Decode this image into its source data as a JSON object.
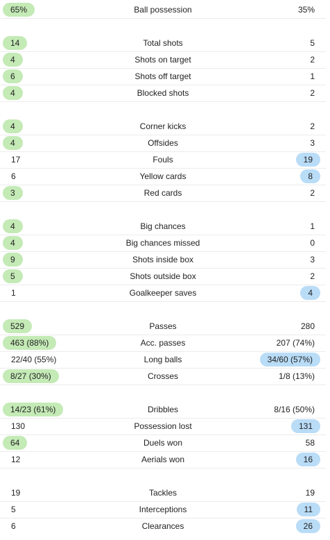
{
  "groups": [
    {
      "rows": [
        {
          "label": "Ball possession",
          "home": "65%",
          "away": "35%",
          "winner": "home"
        }
      ]
    },
    {
      "rows": [
        {
          "label": "Total shots",
          "home": "14",
          "away": "5",
          "winner": "home"
        },
        {
          "label": "Shots on target",
          "home": "4",
          "away": "2",
          "winner": "home"
        },
        {
          "label": "Shots off target",
          "home": "6",
          "away": "1",
          "winner": "home"
        },
        {
          "label": "Blocked shots",
          "home": "4",
          "away": "2",
          "winner": "home"
        }
      ]
    },
    {
      "rows": [
        {
          "label": "Corner kicks",
          "home": "4",
          "away": "2",
          "winner": "home"
        },
        {
          "label": "Offsides",
          "home": "4",
          "away": "3",
          "winner": "home"
        },
        {
          "label": "Fouls",
          "home": "17",
          "away": "19",
          "winner": "away"
        },
        {
          "label": "Yellow cards",
          "home": "6",
          "away": "8",
          "winner": "away"
        },
        {
          "label": "Red cards",
          "home": "3",
          "away": "2",
          "winner": "home"
        }
      ]
    },
    {
      "rows": [
        {
          "label": "Big chances",
          "home": "4",
          "away": "1",
          "winner": "home"
        },
        {
          "label": "Big chances missed",
          "home": "4",
          "away": "0",
          "winner": "home"
        },
        {
          "label": "Shots inside box",
          "home": "9",
          "away": "3",
          "winner": "home"
        },
        {
          "label": "Shots outside box",
          "home": "5",
          "away": "2",
          "winner": "home"
        },
        {
          "label": "Goalkeeper saves",
          "home": "1",
          "away": "4",
          "winner": "away"
        }
      ]
    },
    {
      "rows": [
        {
          "label": "Passes",
          "home": "529",
          "away": "280",
          "winner": "home"
        },
        {
          "label": "Acc. passes",
          "home": "463 (88%)",
          "away": "207 (74%)",
          "winner": "home"
        },
        {
          "label": "Long balls",
          "home": "22/40 (55%)",
          "away": "34/60 (57%)",
          "winner": "away"
        },
        {
          "label": "Crosses",
          "home": "8/27 (30%)",
          "away": "1/8 (13%)",
          "winner": "home"
        }
      ]
    },
    {
      "rows": [
        {
          "label": "Dribbles",
          "home": "14/23 (61%)",
          "away": "8/16 (50%)",
          "winner": "home"
        },
        {
          "label": "Possession lost",
          "home": "130",
          "away": "131",
          "winner": "away"
        },
        {
          "label": "Duels won",
          "home": "64",
          "away": "58",
          "winner": "home"
        },
        {
          "label": "Aerials won",
          "home": "12",
          "away": "16",
          "winner": "away"
        }
      ]
    },
    {
      "rows": [
        {
          "label": "Tackles",
          "home": "19",
          "away": "19",
          "winner": "none"
        },
        {
          "label": "Interceptions",
          "home": "5",
          "away": "11",
          "winner": "away"
        },
        {
          "label": "Clearances",
          "home": "6",
          "away": "26",
          "winner": "away"
        }
      ]
    }
  ],
  "colors": {
    "home_highlight": "#c4eab6",
    "away_highlight": "#b9dcf7",
    "divider": "#ececec",
    "text": "#222222"
  }
}
